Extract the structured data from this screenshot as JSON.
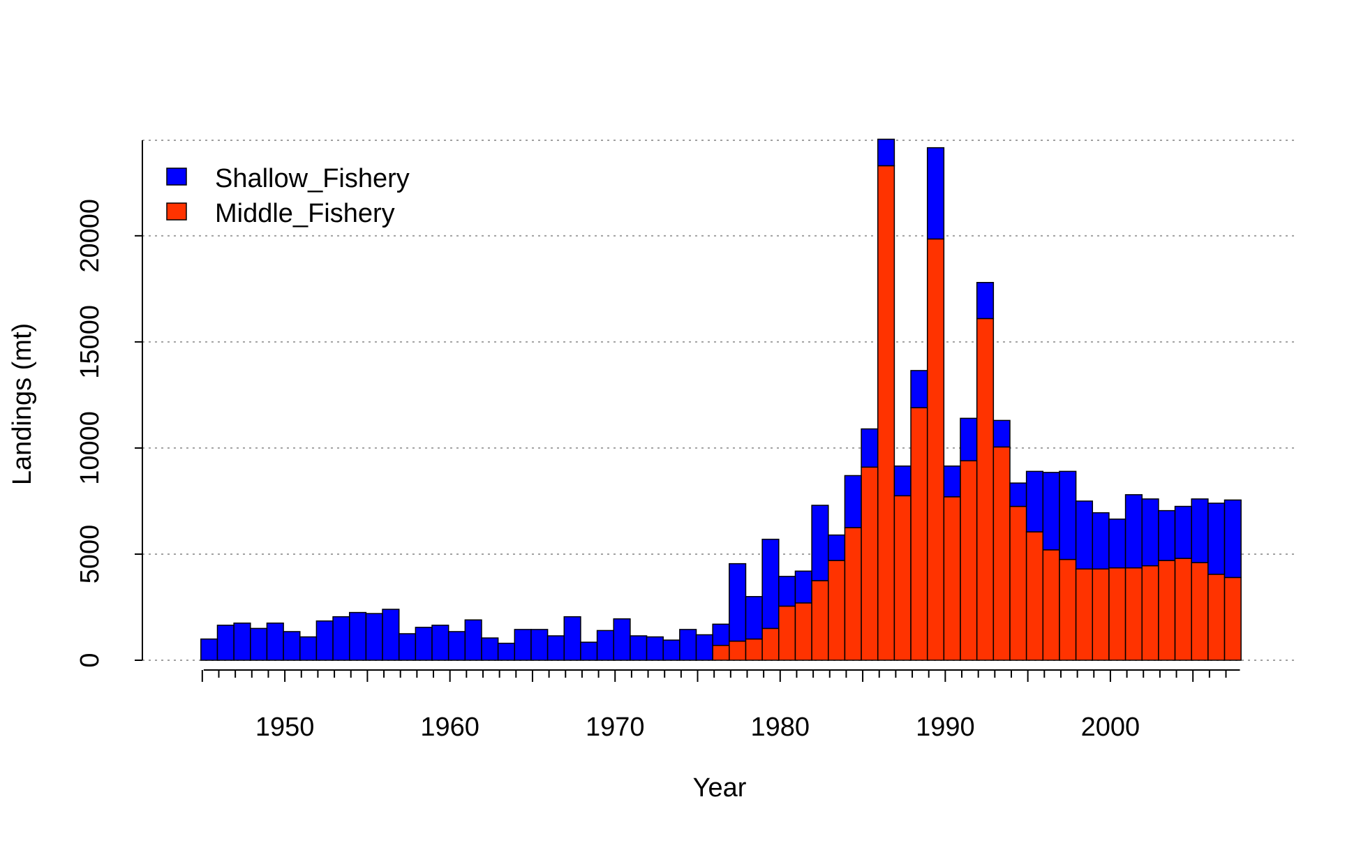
{
  "chart_data": {
    "type": "bar",
    "stacked": true,
    "xlabel": "Year",
    "ylabel": "Landings (mt)",
    "xlim": [
      1944,
      2008
    ],
    "ylim": [
      0,
      24500
    ],
    "grid": "horizontal dotted",
    "legend_position": "top-left",
    "x_ticks": [
      "1950",
      "1960",
      "1970",
      "1980",
      "1990",
      "2000"
    ],
    "y_ticks": [
      "0",
      "5000",
      "10000",
      "15000",
      "20000"
    ],
    "categories": [
      1945,
      1946,
      1947,
      1948,
      1949,
      1950,
      1951,
      1952,
      1953,
      1954,
      1955,
      1956,
      1957,
      1958,
      1959,
      1960,
      1961,
      1962,
      1963,
      1964,
      1965,
      1966,
      1967,
      1968,
      1969,
      1970,
      1971,
      1972,
      1973,
      1974,
      1975,
      1976,
      1977,
      1978,
      1979,
      1980,
      1981,
      1982,
      1983,
      1984,
      1985,
      1986,
      1987,
      1988,
      1989,
      1990,
      1991,
      1992,
      1993,
      1994,
      1995,
      1996,
      1997,
      1998,
      1999,
      2000,
      2001,
      2002,
      2003,
      2004,
      2005,
      2006,
      2007
    ],
    "series": [
      {
        "name": "Middle_Fishery",
        "color": "#ff3300",
        "values": [
          0,
          0,
          0,
          0,
          0,
          0,
          0,
          0,
          0,
          0,
          0,
          0,
          0,
          0,
          0,
          0,
          0,
          0,
          0,
          0,
          0,
          0,
          0,
          0,
          0,
          0,
          0,
          0,
          0,
          0,
          0,
          700,
          900,
          1000,
          1500,
          2550,
          2700,
          3750,
          4700,
          6250,
          9100,
          23300,
          7750,
          11900,
          19850,
          7700,
          9400,
          16100,
          10050,
          7250,
          6050,
          5200,
          4750,
          4300,
          4300,
          4350,
          4350,
          4450,
          4700,
          4800,
          4600,
          4050,
          3900
        ]
      },
      {
        "name": "Shallow_Fishery",
        "color": "#0000ff",
        "values": [
          1000,
          1650,
          1750,
          1500,
          1750,
          1350,
          1100,
          1850,
          2050,
          2250,
          2200,
          2400,
          1250,
          1550,
          1650,
          1350,
          1900,
          1050,
          800,
          1450,
          1450,
          1150,
          2050,
          850,
          1400,
          1950,
          1150,
          1100,
          950,
          1450,
          1200,
          1000,
          3650,
          2000,
          4200,
          1400,
          1500,
          3550,
          1200,
          2450,
          1800,
          1250,
          1400,
          1750,
          4300,
          1450,
          2000,
          1700,
          1250,
          1100,
          2850,
          3650,
          4150,
          3200,
          2650,
          2300,
          3450,
          3150,
          2350,
          2450,
          3000,
          3350,
          3650
        ]
      }
    ]
  }
}
